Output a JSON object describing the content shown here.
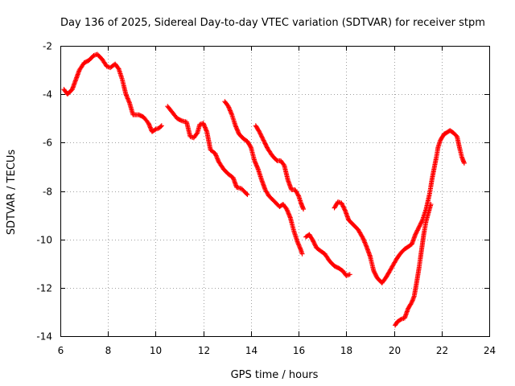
{
  "chart_data": {
    "type": "scatter",
    "title": "Day 136 of 2025, Sidereal Day-to-day VTEC variation (SDTVAR) for receiver stpm",
    "xlabel": "GPS time / hours",
    "ylabel": "SDTVAR / TECUs",
    "xlim": [
      6,
      24
    ],
    "ylim": [
      -14,
      -2
    ],
    "xticks": [
      "6",
      "8",
      "10",
      "12",
      "14",
      "16",
      "18",
      "20",
      "22",
      "24"
    ],
    "yticks": [
      "-2",
      "-4",
      "-6",
      "-8",
      "-10",
      "-12",
      "-14"
    ],
    "grid": true,
    "marker": "+",
    "color": "#ff0000",
    "series": [
      {
        "name": "pass-1",
        "points": [
          [
            6.15,
            -3.8
          ],
          [
            6.3,
            -4.0
          ],
          [
            6.5,
            -3.8
          ],
          [
            6.65,
            -3.4
          ],
          [
            6.8,
            -3.0
          ],
          [
            7.0,
            -2.7
          ],
          [
            7.2,
            -2.6
          ],
          [
            7.4,
            -2.4
          ],
          [
            7.55,
            -2.35
          ],
          [
            7.75,
            -2.55
          ],
          [
            7.95,
            -2.85
          ],
          [
            8.1,
            -2.9
          ],
          [
            8.3,
            -2.75
          ],
          [
            8.45,
            -2.95
          ],
          [
            8.6,
            -3.4
          ],
          [
            8.75,
            -4.0
          ],
          [
            8.9,
            -4.35
          ],
          [
            9.05,
            -4.85
          ],
          [
            9.3,
            -4.85
          ],
          [
            9.5,
            -4.95
          ],
          [
            9.7,
            -5.2
          ],
          [
            9.85,
            -5.55
          ],
          [
            10.0,
            -5.45
          ],
          [
            10.15,
            -5.4
          ],
          [
            10.25,
            -5.3
          ]
        ]
      },
      {
        "name": "pass-2",
        "points": [
          [
            10.5,
            -4.5
          ],
          [
            10.7,
            -4.75
          ],
          [
            10.9,
            -5.0
          ],
          [
            11.1,
            -5.1
          ],
          [
            11.3,
            -5.15
          ],
          [
            11.45,
            -5.75
          ],
          [
            11.6,
            -5.8
          ],
          [
            11.75,
            -5.6
          ],
          [
            11.85,
            -5.25
          ],
          [
            12.0,
            -5.2
          ],
          [
            12.15,
            -5.55
          ],
          [
            12.3,
            -6.3
          ],
          [
            12.5,
            -6.45
          ],
          [
            12.65,
            -6.8
          ],
          [
            12.85,
            -7.1
          ],
          [
            13.05,
            -7.3
          ],
          [
            13.25,
            -7.45
          ],
          [
            13.4,
            -7.85
          ],
          [
            13.6,
            -7.9
          ],
          [
            13.75,
            -8.05
          ],
          [
            13.85,
            -8.15
          ]
        ]
      },
      {
        "name": "pass-3",
        "points": [
          [
            12.9,
            -4.3
          ],
          [
            13.05,
            -4.5
          ],
          [
            13.2,
            -4.85
          ],
          [
            13.35,
            -5.3
          ],
          [
            13.5,
            -5.65
          ],
          [
            13.7,
            -5.85
          ],
          [
            13.85,
            -5.95
          ],
          [
            14.0,
            -6.2
          ],
          [
            14.15,
            -6.75
          ],
          [
            14.3,
            -7.1
          ],
          [
            14.45,
            -7.55
          ],
          [
            14.6,
            -7.95
          ],
          [
            14.75,
            -8.2
          ],
          [
            14.9,
            -8.35
          ],
          [
            15.05,
            -8.5
          ],
          [
            15.2,
            -8.65
          ],
          [
            15.35,
            -8.55
          ],
          [
            15.5,
            -8.75
          ],
          [
            15.65,
            -9.1
          ],
          [
            15.8,
            -9.65
          ],
          [
            15.95,
            -10.1
          ],
          [
            16.1,
            -10.45
          ],
          [
            16.15,
            -10.6
          ]
        ]
      },
      {
        "name": "pass-4",
        "points": [
          [
            14.2,
            -5.3
          ],
          [
            14.35,
            -5.55
          ],
          [
            14.55,
            -5.95
          ],
          [
            14.7,
            -6.25
          ],
          [
            14.9,
            -6.55
          ],
          [
            15.1,
            -6.75
          ],
          [
            15.25,
            -6.75
          ],
          [
            15.4,
            -6.95
          ],
          [
            15.55,
            -7.55
          ],
          [
            15.7,
            -7.95
          ],
          [
            15.85,
            -7.95
          ],
          [
            16.0,
            -8.2
          ],
          [
            16.1,
            -8.5
          ],
          [
            16.2,
            -8.75
          ]
        ]
      },
      {
        "name": "pass-5",
        "points": [
          [
            16.3,
            -9.9
          ],
          [
            16.45,
            -9.8
          ],
          [
            16.6,
            -10.05
          ],
          [
            16.75,
            -10.35
          ],
          [
            16.95,
            -10.5
          ],
          [
            17.1,
            -10.6
          ],
          [
            17.3,
            -10.9
          ],
          [
            17.5,
            -11.1
          ],
          [
            17.7,
            -11.2
          ],
          [
            17.85,
            -11.3
          ],
          [
            18.0,
            -11.5
          ],
          [
            18.15,
            -11.45
          ]
        ]
      },
      {
        "name": "pass-6",
        "points": [
          [
            17.5,
            -8.7
          ],
          [
            17.65,
            -8.45
          ],
          [
            17.8,
            -8.5
          ],
          [
            17.95,
            -8.8
          ],
          [
            18.1,
            -9.2
          ],
          [
            18.3,
            -9.4
          ],
          [
            18.5,
            -9.6
          ],
          [
            18.7,
            -9.95
          ],
          [
            18.85,
            -10.3
          ],
          [
            19.0,
            -10.7
          ],
          [
            19.15,
            -11.3
          ],
          [
            19.3,
            -11.6
          ],
          [
            19.5,
            -11.8
          ],
          [
            19.65,
            -11.6
          ],
          [
            19.8,
            -11.35
          ],
          [
            20.0,
            -11.0
          ],
          [
            20.15,
            -10.75
          ],
          [
            20.3,
            -10.55
          ],
          [
            20.45,
            -10.4
          ],
          [
            20.6,
            -10.3
          ],
          [
            20.75,
            -10.2
          ],
          [
            20.9,
            -9.8
          ],
          [
            21.05,
            -9.5
          ],
          [
            21.2,
            -9.2
          ],
          [
            21.35,
            -8.75
          ],
          [
            21.5,
            -8.1
          ],
          [
            21.6,
            -7.5
          ],
          [
            21.7,
            -7.0
          ],
          [
            21.8,
            -6.5
          ],
          [
            21.85,
            -6.2
          ],
          [
            21.95,
            -5.9
          ],
          [
            22.1,
            -5.65
          ],
          [
            22.2,
            -5.6
          ],
          [
            22.35,
            -5.5
          ],
          [
            22.5,
            -5.6
          ],
          [
            22.65,
            -5.75
          ],
          [
            22.75,
            -6.2
          ],
          [
            22.85,
            -6.6
          ],
          [
            22.95,
            -6.85
          ]
        ]
      },
      {
        "name": "pass-7",
        "points": [
          [
            20.05,
            -13.55
          ],
          [
            20.15,
            -13.4
          ],
          [
            20.3,
            -13.3
          ],
          [
            20.45,
            -13.25
          ],
          [
            20.6,
            -12.85
          ],
          [
            20.75,
            -12.6
          ],
          [
            20.85,
            -12.35
          ],
          [
            20.95,
            -11.8
          ],
          [
            21.05,
            -11.2
          ],
          [
            21.15,
            -10.5
          ],
          [
            21.25,
            -9.8
          ],
          [
            21.35,
            -9.25
          ],
          [
            21.45,
            -8.9
          ],
          [
            21.55,
            -8.55
          ]
        ]
      }
    ]
  }
}
